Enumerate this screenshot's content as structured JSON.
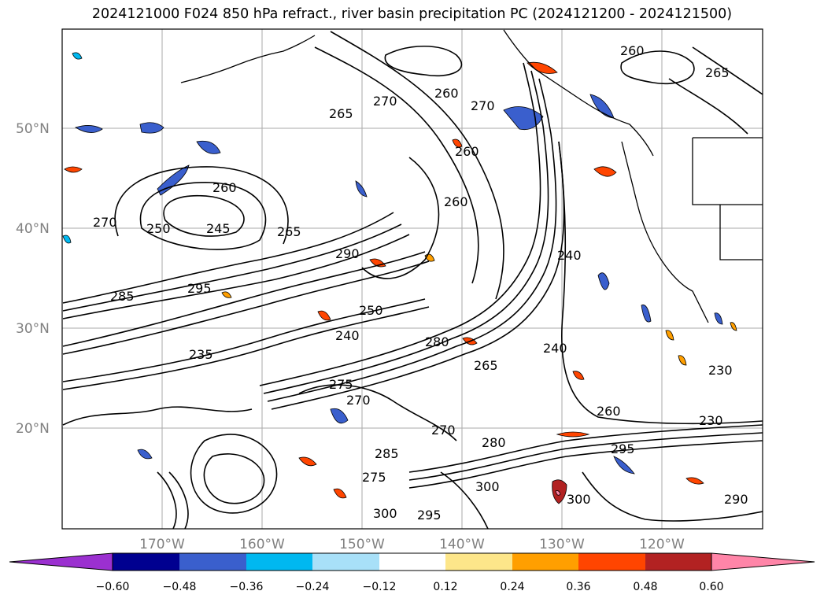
{
  "title": "2024121000 F024 850 hPa refract., river basin precipitation PC (2024121200 - 2024121500)",
  "latitude_labels": [
    "50°N",
    "40°N",
    "30°N",
    "20°N"
  ],
  "longitude_labels": [
    "170°W",
    "160°W",
    "150°W",
    "140°W",
    "130°W",
    "120°W"
  ],
  "contour_labels": [
    "260",
    "265",
    "270",
    "265",
    "260",
    "270",
    "260",
    "260",
    "250",
    "245",
    "265",
    "270",
    "260",
    "240",
    "290",
    "295",
    "285",
    "235",
    "240",
    "250",
    "275",
    "270",
    "280",
    "240",
    "265",
    "230",
    "260",
    "230",
    "295",
    "300",
    "300",
    "295",
    "290",
    "285",
    "275",
    "270",
    "280",
    "300"
  ],
  "colorbar": {
    "tick_labels": [
      "−0.60",
      "−0.48",
      "−0.36",
      "−0.24",
      "−0.12",
      "0.12",
      "0.24",
      "0.36",
      "0.48",
      "0.60"
    ],
    "colors": [
      "#9b30d0",
      "#000090",
      "#3a5fcd",
      "#00b8f0",
      "#a8e0f8",
      "#ffffff",
      "#fde68a",
      "#ff9f00",
      "#ff4500",
      "#b22222",
      "#ff85a8"
    ]
  }
}
